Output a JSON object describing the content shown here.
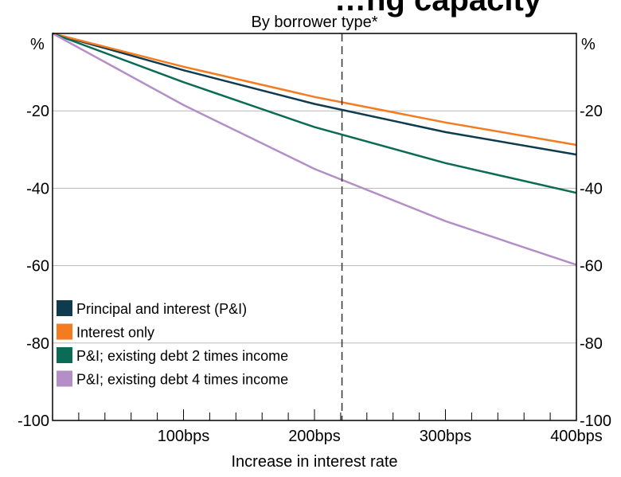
{
  "chart_data": {
    "type": "line",
    "title": "…ng capacity",
    "subtitle": "By borrower type*",
    "xlabel": "Increase in interest rate",
    "ylabel_left": "%",
    "ylabel_right": "%",
    "x": [
      0,
      400
    ],
    "xticks": [
      {
        "value": 100,
        "label": "100bps"
      },
      {
        "value": 200,
        "label": "200bps"
      },
      {
        "value": 300,
        "label": "300bps"
      },
      {
        "value": 400,
        "label": "400bps"
      }
    ],
    "ylim": [
      -100,
      0
    ],
    "yticks": [
      {
        "value": -20,
        "label": "-20"
      },
      {
        "value": -40,
        "label": "-40"
      },
      {
        "value": -60,
        "label": "-60"
      },
      {
        "value": -80,
        "label": "-80"
      },
      {
        "value": -100,
        "label": "-100"
      }
    ],
    "grid": true,
    "reference_line_x": 221,
    "legend_placement": "bottom-left",
    "series": [
      {
        "name": "Principal and interest (P&I)",
        "color": "#0f3b4f",
        "points": [
          [
            0,
            0
          ],
          [
            100,
            -9.5
          ],
          [
            200,
            -18.2
          ],
          [
            300,
            -25.5
          ],
          [
            400,
            -31.3
          ]
        ]
      },
      {
        "name": "Interest only",
        "color": "#f47b20",
        "points": [
          [
            0,
            0
          ],
          [
            100,
            -8.6
          ],
          [
            200,
            -16.4
          ],
          [
            300,
            -23.0
          ],
          [
            400,
            -28.8
          ]
        ]
      },
      {
        "name": "P&I; existing debt 2 times income",
        "color": "#0b6b55",
        "points": [
          [
            0,
            0
          ],
          [
            100,
            -12.6
          ],
          [
            200,
            -24.2
          ],
          [
            300,
            -33.5
          ],
          [
            400,
            -41.2
          ]
        ]
      },
      {
        "name": "P&I; existing debt 4 times income",
        "color": "#b48ec6",
        "points": [
          [
            0,
            0
          ],
          [
            100,
            -18.5
          ],
          [
            200,
            -35.0
          ],
          [
            300,
            -48.5
          ],
          [
            400,
            -59.8
          ]
        ]
      }
    ]
  }
}
